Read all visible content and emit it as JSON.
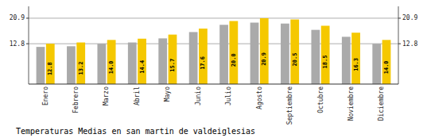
{
  "chart_data": {
    "type": "bar",
    "title": "Temperaturas Medias en san martin de valdeiglesias",
    "categories": [
      "Enero",
      "Febrero",
      "Marzo",
      "Abril",
      "Mayo",
      "Junio",
      "Julio",
      "Agosto",
      "Septiembre",
      "Octubre",
      "Noviembre",
      "Diciembre"
    ],
    "series": [
      {
        "color": "#AAAAAA",
        "values": [
          11.8,
          12.0,
          12.8,
          13.2,
          14.5,
          16.5,
          18.8,
          19.5,
          19.2,
          17.2,
          15.0,
          12.8
        ]
      },
      {
        "color": "#F5C800",
        "values": [
          12.8,
          13.2,
          14.0,
          14.4,
          15.7,
          17.6,
          20.0,
          20.9,
          20.5,
          18.5,
          16.3,
          14.0
        ],
        "data_labels": true,
        "value_labels": [
          "12.8",
          "13.2",
          "14.0",
          "14.4",
          "15.7",
          "17.6",
          "20.0",
          "20.9",
          "20.5",
          "18.5",
          "16.3",
          "14.0"
        ]
      }
    ],
    "ylim": [
      0,
      24.662
    ],
    "yticks": [
      12.8,
      20.9
    ],
    "y2lim": [
      0,
      24.662
    ],
    "y2ticks": [
      12.8,
      20.9
    ],
    "grid": true
  }
}
